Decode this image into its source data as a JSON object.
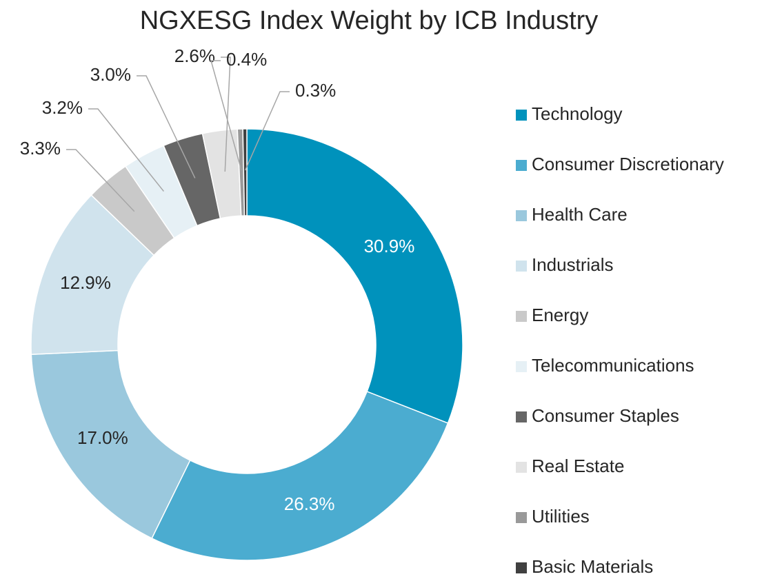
{
  "chart_data": {
    "type": "donut",
    "title": "NGXESG Index Weight by ICB Industry",
    "categories": [
      "Technology",
      "Consumer Discretionary",
      "Health Care",
      "Industrials",
      "Energy",
      "Telecommunications",
      "Consumer Staples",
      "Real Estate",
      "Utilities",
      "Basic Materials"
    ],
    "values": [
      30.9,
      26.3,
      17.0,
      12.9,
      3.3,
      3.2,
      3.0,
      2.6,
      0.4,
      0.3
    ],
    "value_labels": [
      "30.9%",
      "26.3%",
      "17.0%",
      "12.9%",
      "3.3%",
      "3.2%",
      "3.0%",
      "2.6%",
      "0.4%",
      "0.3%"
    ],
    "colors": [
      "#0092bc",
      "#4bacd0",
      "#9ac8dd",
      "#d0e3ed",
      "#c9c9c9",
      "#e6f0f5",
      "#666666",
      "#e3e3e3",
      "#999999",
      "#404040"
    ],
    "legend": "right"
  }
}
